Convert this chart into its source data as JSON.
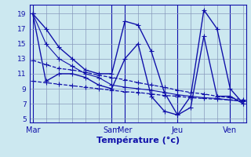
{
  "xlabel": "Température (°c)",
  "background_color": "#cce8f0",
  "grid_color": "#8899bb",
  "line_color": "#1111aa",
  "yticks": [
    5,
    7,
    9,
    11,
    13,
    15,
    17,
    19
  ],
  "ylim": [
    4.5,
    20.2
  ],
  "xlim": [
    -0.2,
    16.2
  ],
  "xtick_labels": [
    "Mar",
    "Sam",
    "Mer",
    "Jeu",
    "Ven"
  ],
  "xtick_positions": [
    0,
    6,
    7,
    11,
    15
  ],
  "series": [
    {
      "x": [
        0,
        1,
        2,
        3,
        4,
        5,
        6,
        7,
        8,
        9,
        10,
        11,
        12,
        13,
        14,
        15,
        16
      ],
      "y": [
        19,
        17,
        14.5,
        13,
        11.5,
        11,
        11,
        18,
        17.5,
        14,
        8.5,
        5.5,
        8,
        19.5,
        17,
        9,
        7
      ],
      "style": "-",
      "marker": "+",
      "markersize": 4,
      "linewidth": 1.0
    },
    {
      "x": [
        0,
        1,
        2,
        3,
        4,
        5,
        6,
        7,
        8,
        9,
        10,
        11,
        12,
        13,
        14,
        15,
        16
      ],
      "y": [
        19,
        10,
        11,
        11,
        10.5,
        9.5,
        9,
        13,
        15,
        8,
        6,
        5.5,
        6.5,
        16,
        8,
        8,
        7
      ],
      "style": "-",
      "marker": "+",
      "markersize": 4,
      "linewidth": 1.0
    },
    {
      "x": [
        0,
        1,
        2,
        3,
        4,
        5,
        6,
        7,
        8,
        9,
        10,
        11,
        12,
        13,
        14,
        15,
        16
      ],
      "y": [
        12.8,
        12.2,
        11.7,
        11.5,
        11.2,
        10.8,
        10.5,
        10.2,
        9.8,
        9.5,
        9.2,
        8.8,
        8.5,
        8.3,
        8.0,
        7.8,
        7.5
      ],
      "style": "--",
      "marker": "+",
      "markersize": 4,
      "linewidth": 0.9
    },
    {
      "x": [
        0,
        1,
        2,
        3,
        4,
        5,
        6,
        7,
        8,
        9,
        10,
        11,
        12,
        13,
        14,
        15,
        16
      ],
      "y": [
        10.0,
        9.8,
        9.6,
        9.4,
        9.2,
        9.0,
        8.8,
        8.6,
        8.5,
        8.3,
        8.1,
        8.0,
        7.8,
        7.7,
        7.6,
        7.5,
        7.4
      ],
      "style": "--",
      "marker": "+",
      "markersize": 4,
      "linewidth": 0.9
    },
    {
      "x": [
        0,
        1,
        2,
        3,
        4,
        5,
        6,
        7,
        8,
        9,
        10,
        11,
        12,
        13,
        14,
        15,
        16
      ],
      "y": [
        19,
        15,
        13,
        12,
        11,
        10.5,
        9.5,
        9.2,
        9.0,
        8.8,
        8.5,
        8.2,
        8.0,
        7.8,
        7.7,
        7.5,
        7.3
      ],
      "style": "-",
      "marker": "+",
      "markersize": 4,
      "linewidth": 0.8
    }
  ]
}
